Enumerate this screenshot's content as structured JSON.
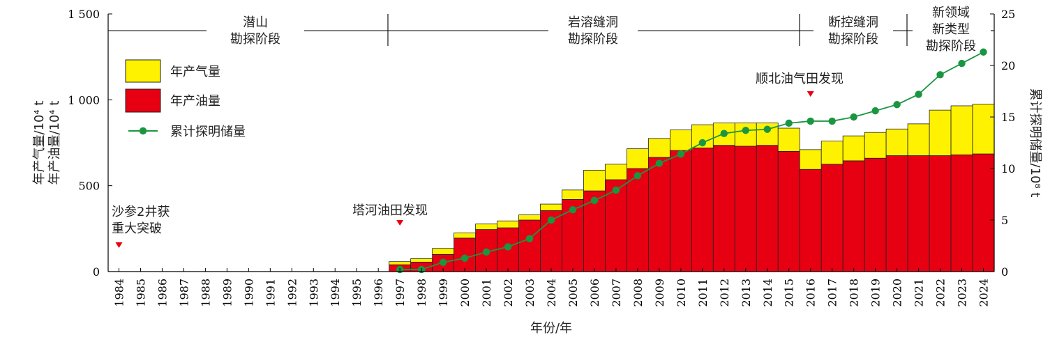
{
  "chart_data": {
    "type": "bar",
    "categories": [
      "1984",
      "1985",
      "1986",
      "1987",
      "1988",
      "1989",
      "1990",
      "1991",
      "1992",
      "1993",
      "1994",
      "1995",
      "1996",
      "1997",
      "1998",
      "1999",
      "2000",
      "2001",
      "2002",
      "2003",
      "2004",
      "2005",
      "2006",
      "2007",
      "2008",
      "2009",
      "2010",
      "2011",
      "2012",
      "2013",
      "2014",
      "2015",
      "2016",
      "2017",
      "2018",
      "2019",
      "2020",
      "2021",
      "2022",
      "2023",
      "2024"
    ],
    "stacked": true,
    "series": [
      {
        "name": "年产油量",
        "color": "#e60012",
        "axis": "left",
        "values": [
          0,
          0,
          0,
          0,
          0,
          0,
          0,
          0,
          0,
          0,
          0,
          0,
          0,
          40,
          55,
          100,
          195,
          245,
          255,
          300,
          355,
          420,
          470,
          535,
          600,
          665,
          705,
          720,
          735,
          730,
          735,
          700,
          595,
          625,
          645,
          660,
          675,
          675,
          675,
          680,
          685
        ]
      },
      {
        "name": "年产气量",
        "color": "#fff200",
        "axis": "left",
        "values": [
          0,
          0,
          0,
          0,
          0,
          0,
          0,
          0,
          0,
          0,
          0,
          0,
          0,
          18,
          20,
          35,
          30,
          32,
          40,
          30,
          38,
          55,
          120,
          90,
          115,
          110,
          120,
          135,
          130,
          135,
          130,
          135,
          115,
          135,
          145,
          150,
          155,
          185,
          265,
          285,
          290
        ]
      },
      {
        "name": "累计探明储量",
        "type": "line",
        "color": "#1a9641",
        "axis": "right",
        "values": [
          null,
          null,
          null,
          null,
          null,
          null,
          null,
          null,
          null,
          null,
          null,
          null,
          null,
          0.2,
          0.2,
          0.9,
          1.3,
          1.9,
          2.4,
          3.2,
          5.0,
          6.0,
          6.9,
          7.9,
          9.3,
          10.5,
          11.4,
          12.5,
          13.4,
          13.7,
          13.8,
          14.4,
          14.6,
          14.6,
          15.0,
          15.6,
          16.2,
          17.2,
          19.1,
          20.2,
          21.3
        ]
      }
    ],
    "yleft": {
      "label_line1": "年产气量/10⁴ t",
      "label_line2": "年产油量/10⁴ t",
      "ylim": [
        0,
        1500
      ],
      "ticks": [
        0,
        500,
        1000,
        1500
      ],
      "tick_labels": [
        "0",
        "500",
        "1 000",
        "1 500"
      ]
    },
    "yright": {
      "label": "累计探明储量/10⁸ t",
      "ylim": [
        0,
        25
      ],
      "ticks": [
        0,
        5,
        10,
        15,
        20,
        25
      ]
    },
    "xlabel": "年份/年",
    "legend_position": "top-left",
    "phases": [
      {
        "line1": "潜山",
        "line2": "勘探阶段",
        "line3": ""
      },
      {
        "line1": "岩溶缝洞",
        "line2": "勘探阶段",
        "line3": ""
      },
      {
        "line1": "断控缝洞",
        "line2": "勘探阶段",
        "line3": ""
      },
      {
        "line1": "新领域",
        "line2": "新类型",
        "line3": "勘探阶段"
      }
    ],
    "annotations": [
      {
        "line1": "沙参2井获",
        "line2": "重大突破",
        "year": "1984"
      },
      {
        "line1": "塔河油田发现",
        "line2": "",
        "year": "1997"
      },
      {
        "line1": "顺北油气田发现",
        "line2": "",
        "year": "2016"
      }
    ]
  }
}
